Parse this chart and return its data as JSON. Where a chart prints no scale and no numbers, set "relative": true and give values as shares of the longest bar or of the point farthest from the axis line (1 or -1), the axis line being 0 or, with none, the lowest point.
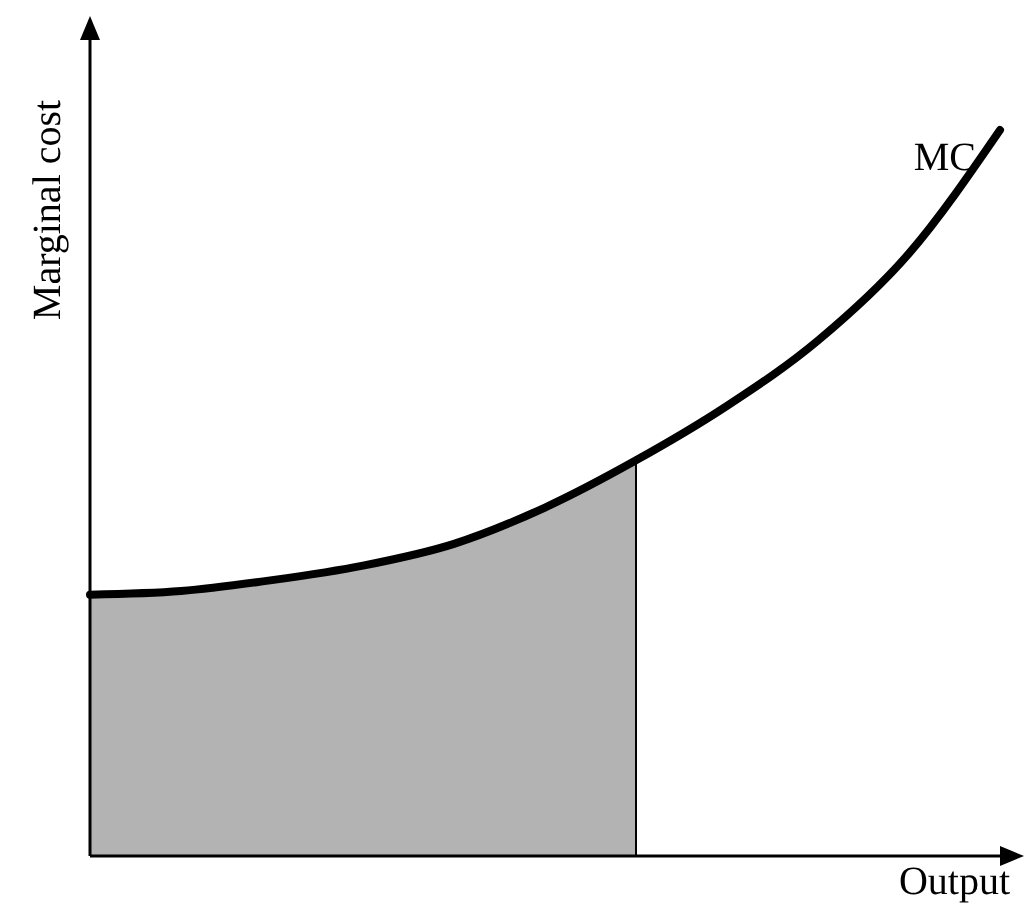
{
  "chart_data": {
    "type": "line",
    "relative": true,
    "xlabel": "Output",
    "ylabel": "Marginal cost",
    "categories": [
      null,
      null,
      null,
      null,
      null,
      null,
      null,
      null,
      null,
      null,
      null
    ],
    "series": [
      {
        "type": "area",
        "color": "#b3b3b3",
        "values": [
          0.36,
          0.365,
          0.38,
          0.4,
          0.43,
          0.48,
          0.545,
          null,
          null,
          null,
          null
        ]
      },
      {
        "name": "MC",
        "color": "#000000",
        "values": [
          0.36,
          0.365,
          0.38,
          0.4,
          0.43,
          0.48,
          0.545,
          0.62,
          0.71,
          0.83,
          1
        ]
      }
    ]
  }
}
